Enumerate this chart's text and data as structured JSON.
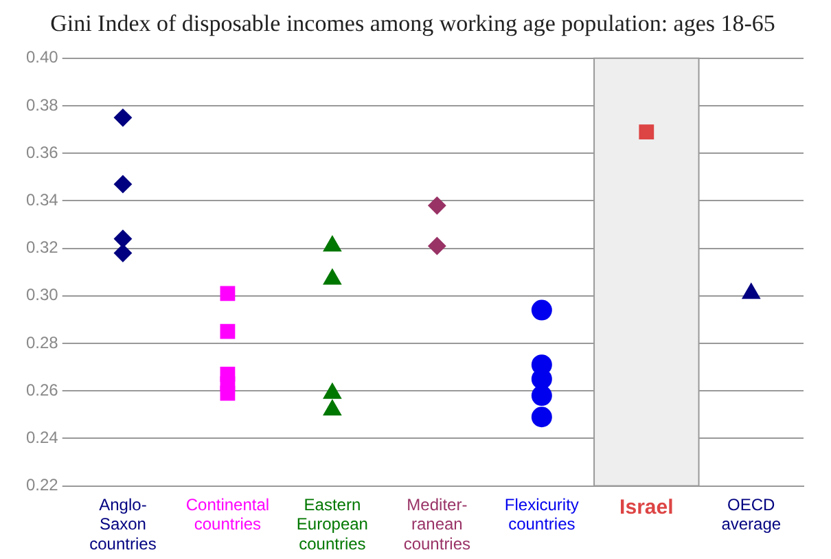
{
  "chart_data": {
    "type": "scatter",
    "title": "Gini Index of disposable incomes among working age population: ages 18-65",
    "categories": [
      "Anglo-\nSaxon\ncountries",
      "Continental\ncountries",
      "Eastern\nEuropean\ncountries",
      "Mediter-\nranean\ncountries",
      "Flexicurity\ncountries",
      "Israel",
      "OECD\naverage"
    ],
    "series": [
      {
        "color": "#000080",
        "marker": "diamond",
        "x": [
          "Anglo-\nSaxon\ncountries",
          "Anglo-\nSaxon\ncountries",
          "Anglo-\nSaxon\ncountries",
          "Anglo-\nSaxon\ncountries"
        ],
        "values": [
          0.375,
          0.347,
          0.324,
          0.318
        ]
      },
      {
        "color": "#ff00ff",
        "marker": "square",
        "x": [
          "Continental\ncountries",
          "Continental\ncountries",
          "Continental\ncountries",
          "Continental\ncountries",
          "Continental\ncountries"
        ],
        "values": [
          0.301,
          0.285,
          0.267,
          0.263,
          0.259
        ]
      },
      {
        "color": "#007700",
        "marker": "triangle",
        "x": [
          "Eastern\nEuropean\ncountries",
          "Eastern\nEuropean\ncountries",
          "Eastern\nEuropean\ncountries",
          "Eastern\nEuropean\ncountries"
        ],
        "values": [
          0.321,
          0.307,
          0.259,
          0.252
        ]
      },
      {
        "color": "#993366",
        "marker": "diamond",
        "x": [
          "Mediter-\nranean\ncountries",
          "Mediter-\nranean\ncountries"
        ],
        "values": [
          0.338,
          0.321
        ]
      },
      {
        "color": "#0000ee",
        "marker": "circle",
        "x": [
          "Flexicurity\ncountries",
          "Flexicurity\ncountries",
          "Flexicurity\ncountries",
          "Flexicurity\ncountries",
          "Flexicurity\ncountries"
        ],
        "values": [
          0.294,
          0.271,
          0.265,
          0.258,
          0.249
        ]
      },
      {
        "color": "#dd4444",
        "marker": "square",
        "x": [
          "Israel"
        ],
        "values": [
          0.369
        ]
      },
      {
        "color": "#000080",
        "marker": "triangle",
        "x": [
          "OECD\naverage"
        ],
        "values": [
          0.301
        ]
      }
    ],
    "ylim": [
      0.22,
      0.4
    ],
    "yticks": [
      {
        "value": 0.22,
        "label": "0.22"
      },
      {
        "value": 0.24,
        "label": "0.24"
      },
      {
        "value": 0.26,
        "label": "0.26"
      },
      {
        "value": 0.28,
        "label": "0.28"
      },
      {
        "value": 0.3,
        "label": "0.30"
      },
      {
        "value": 0.32,
        "label": "0.32"
      },
      {
        "value": 0.34,
        "label": "0.34"
      },
      {
        "value": 0.36,
        "label": "0.36"
      },
      {
        "value": 0.38,
        "label": "0.38"
      },
      {
        "value": 0.4,
        "label": "0.40"
      }
    ],
    "bands": [
      {
        "axis": "x",
        "from": "Israel",
        "to": "Israel",
        "color": "#eeeeee"
      }
    ],
    "grid": "y",
    "legend": false
  }
}
